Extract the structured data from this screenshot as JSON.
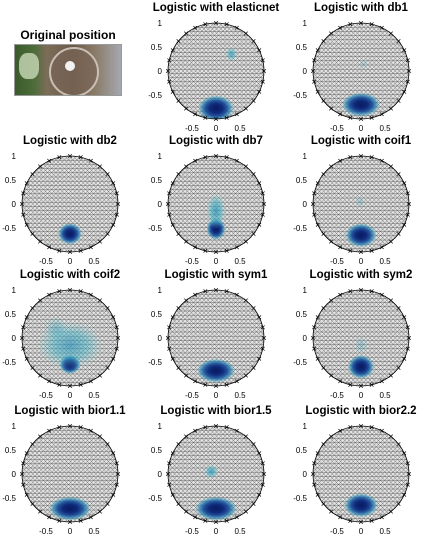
{
  "photo": {
    "title": "Original position",
    "content": "photograph of an EEG cap worn on a head with electrode marker"
  },
  "chart_data": [
    {
      "type": "heatmap",
      "title": "Logistic with elasticnet",
      "xticks": [
        "-0.5",
        "0",
        "0.5"
      ],
      "yticks": [
        "1",
        "0.5",
        "0",
        "-0.5"
      ],
      "xlim": [
        -1,
        1
      ],
      "ylim": [
        -1,
        1
      ],
      "blobs": [
        {
          "x": 0,
          "y": -0.78,
          "rx": 0.3,
          "ry": 0.22,
          "level": 1.0
        },
        {
          "x": 0.32,
          "y": 0.35,
          "rx": 0.1,
          "ry": 0.12,
          "level": 0.35
        }
      ]
    },
    {
      "type": "heatmap",
      "title": "Logistic with db1",
      "xticks": [
        "-0.5",
        "0",
        "0.5"
      ],
      "yticks": [
        "1",
        "0.5",
        "0",
        "-0.5"
      ],
      "xlim": [
        -1,
        1
      ],
      "ylim": [
        -1,
        1
      ],
      "blobs": [
        {
          "x": 0,
          "y": -0.7,
          "rx": 0.32,
          "ry": 0.2,
          "level": 1.0
        },
        {
          "x": 0.05,
          "y": 0.15,
          "rx": 0.08,
          "ry": 0.08,
          "level": 0.12
        }
      ]
    },
    {
      "type": "heatmap",
      "title": "Logistic with db2",
      "xticks": [
        "-0.5",
        "0",
        "0.5"
      ],
      "yticks": [
        "1",
        "0.5",
        "0",
        "-0.5"
      ],
      "xlim": [
        -1,
        1
      ],
      "ylim": [
        -1,
        1
      ],
      "blobs": [
        {
          "x": 0,
          "y": -0.62,
          "rx": 0.2,
          "ry": 0.18,
          "level": 1.0
        }
      ]
    },
    {
      "type": "heatmap",
      "title": "Logistic with db7",
      "xticks": [
        "-0.5",
        "0",
        "0.5"
      ],
      "yticks": [
        "1",
        "0.5",
        "0",
        "-0.5"
      ],
      "xlim": [
        -1,
        1
      ],
      "ylim": [
        -1,
        1
      ],
      "blobs": [
        {
          "x": 0,
          "y": -0.52,
          "rx": 0.16,
          "ry": 0.18,
          "level": 1.0
        },
        {
          "x": 0,
          "y": -0.15,
          "rx": 0.16,
          "ry": 0.3,
          "level": 0.4
        }
      ]
    },
    {
      "type": "heatmap",
      "title": "Logistic with coif1",
      "xticks": [
        "-0.5",
        "0",
        "0.5"
      ],
      "yticks": [
        "1",
        "0.5",
        "0",
        "-0.5"
      ],
      "xlim": [
        -1,
        1
      ],
      "ylim": [
        -1,
        1
      ],
      "blobs": [
        {
          "x": 0,
          "y": -0.65,
          "rx": 0.26,
          "ry": 0.2,
          "level": 1.0
        },
        {
          "x": -0.02,
          "y": 0.05,
          "rx": 0.08,
          "ry": 0.1,
          "level": 0.15
        }
      ]
    },
    {
      "type": "heatmap",
      "title": "Logistic with coif2",
      "xticks": [
        "-0.5",
        "0",
        "0.5"
      ],
      "yticks": [
        "1",
        "0.5",
        "0",
        "-0.5"
      ],
      "xlim": [
        -1,
        1
      ],
      "ylim": [
        -1,
        1
      ],
      "blobs": [
        {
          "x": 0,
          "y": -0.55,
          "rx": 0.18,
          "ry": 0.16,
          "level": 1.0
        },
        {
          "x": 0,
          "y": -0.15,
          "rx": 0.55,
          "ry": 0.4,
          "level": 0.35
        },
        {
          "x": -0.3,
          "y": 0.2,
          "rx": 0.2,
          "ry": 0.2,
          "level": 0.18
        }
      ]
    },
    {
      "type": "heatmap",
      "title": "Logistic with sym1",
      "xticks": [
        "-0.5",
        "0",
        "0.5"
      ],
      "yticks": [
        "1",
        "0.5",
        "0",
        "-0.5"
      ],
      "xlim": [
        -1,
        1
      ],
      "ylim": [
        -1,
        1
      ],
      "blobs": [
        {
          "x": 0,
          "y": -0.68,
          "rx": 0.32,
          "ry": 0.2,
          "level": 1.0
        }
      ]
    },
    {
      "type": "heatmap",
      "title": "Logistic with sym2",
      "xticks": [
        "-0.5",
        "0",
        "0.5"
      ],
      "yticks": [
        "1",
        "0.5",
        "0",
        "-0.5"
      ],
      "xlim": [
        -1,
        1
      ],
      "ylim": [
        -1,
        1
      ],
      "blobs": [
        {
          "x": 0,
          "y": -0.6,
          "rx": 0.22,
          "ry": 0.2,
          "level": 1.0
        },
        {
          "x": 0,
          "y": -0.15,
          "rx": 0.12,
          "ry": 0.15,
          "level": 0.15
        }
      ]
    },
    {
      "type": "heatmap",
      "title": "Logistic with bior1.1",
      "xticks": [
        "-0.5",
        "0",
        "0.5"
      ],
      "yticks": [
        "1",
        "0.5",
        "0",
        "-0.5"
      ],
      "xlim": [
        -1,
        1
      ],
      "ylim": [
        -1,
        1
      ],
      "blobs": [
        {
          "x": 0,
          "y": -0.72,
          "rx": 0.35,
          "ry": 0.2,
          "level": 1.0
        }
      ]
    },
    {
      "type": "heatmap",
      "title": "Logistic with bior1.5",
      "xticks": [
        "-0.5",
        "0",
        "0.5"
      ],
      "yticks": [
        "1",
        "0.5",
        "0",
        "-0.5"
      ],
      "xlim": [
        -1,
        1
      ],
      "ylim": [
        -1,
        1
      ],
      "blobs": [
        {
          "x": 0,
          "y": -0.72,
          "rx": 0.35,
          "ry": 0.2,
          "level": 1.0
        },
        {
          "x": -0.1,
          "y": 0.05,
          "rx": 0.12,
          "ry": 0.12,
          "level": 0.4
        }
      ]
    },
    {
      "type": "heatmap",
      "title": "Logistic with bior2.2",
      "xticks": [
        "-0.5",
        "0",
        "0.5"
      ],
      "yticks": [
        "1",
        "0.5",
        "0",
        "-0.5"
      ],
      "xlim": [
        -1,
        1
      ],
      "ylim": [
        -1,
        1
      ],
      "blobs": [
        {
          "x": 0,
          "y": -0.65,
          "rx": 0.28,
          "ry": 0.2,
          "level": 1.0
        }
      ]
    }
  ]
}
